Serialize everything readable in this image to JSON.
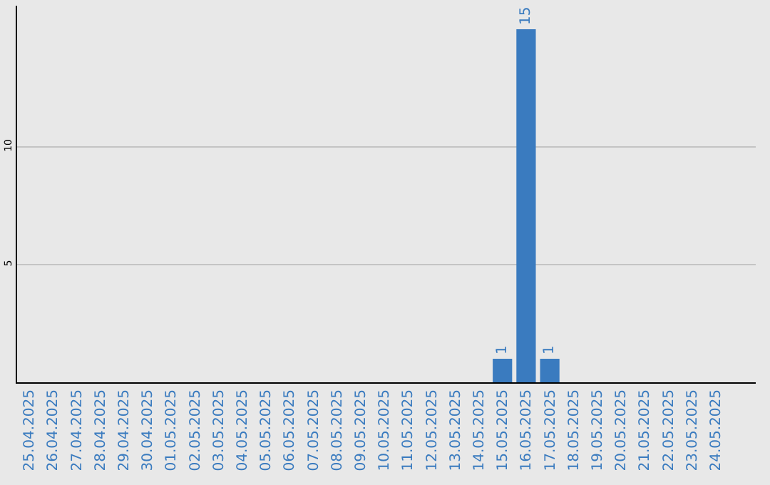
{
  "chart_data": {
    "type": "bar",
    "categories": [
      "25.04.2025",
      "26.04.2025",
      "27.04.2025",
      "28.04.2025",
      "29.04.2025",
      "30.04.2025",
      "01.05.2025",
      "02.05.2025",
      "03.05.2025",
      "04.05.2025",
      "05.05.2025",
      "06.05.2025",
      "07.05.2025",
      "08.05.2025",
      "09.05.2025",
      "10.05.2025",
      "11.05.2025",
      "12.05.2025",
      "13.05.2025",
      "14.05.2025",
      "15.05.2025",
      "16.05.2025",
      "17.05.2025",
      "18.05.2025",
      "19.05.2025",
      "20.05.2025",
      "21.05.2025",
      "22.05.2025",
      "23.05.2025",
      "24.05.2025"
    ],
    "values": [
      0,
      0,
      0,
      0,
      0,
      0,
      0,
      0,
      0,
      0,
      0,
      0,
      0,
      0,
      0,
      0,
      0,
      0,
      0,
      0,
      1,
      15,
      1,
      0,
      0,
      0,
      0,
      0,
      0,
      0
    ],
    "value_labels": [
      null,
      null,
      null,
      null,
      null,
      null,
      null,
      null,
      null,
      null,
      null,
      null,
      null,
      null,
      null,
      null,
      null,
      null,
      null,
      null,
      "1",
      "15",
      "1",
      null,
      null,
      null,
      null,
      null,
      null,
      null
    ],
    "color": "#3a7bbf",
    "ylim": [
      0,
      16
    ],
    "yticks": [
      5,
      10
    ],
    "grid": "y"
  }
}
